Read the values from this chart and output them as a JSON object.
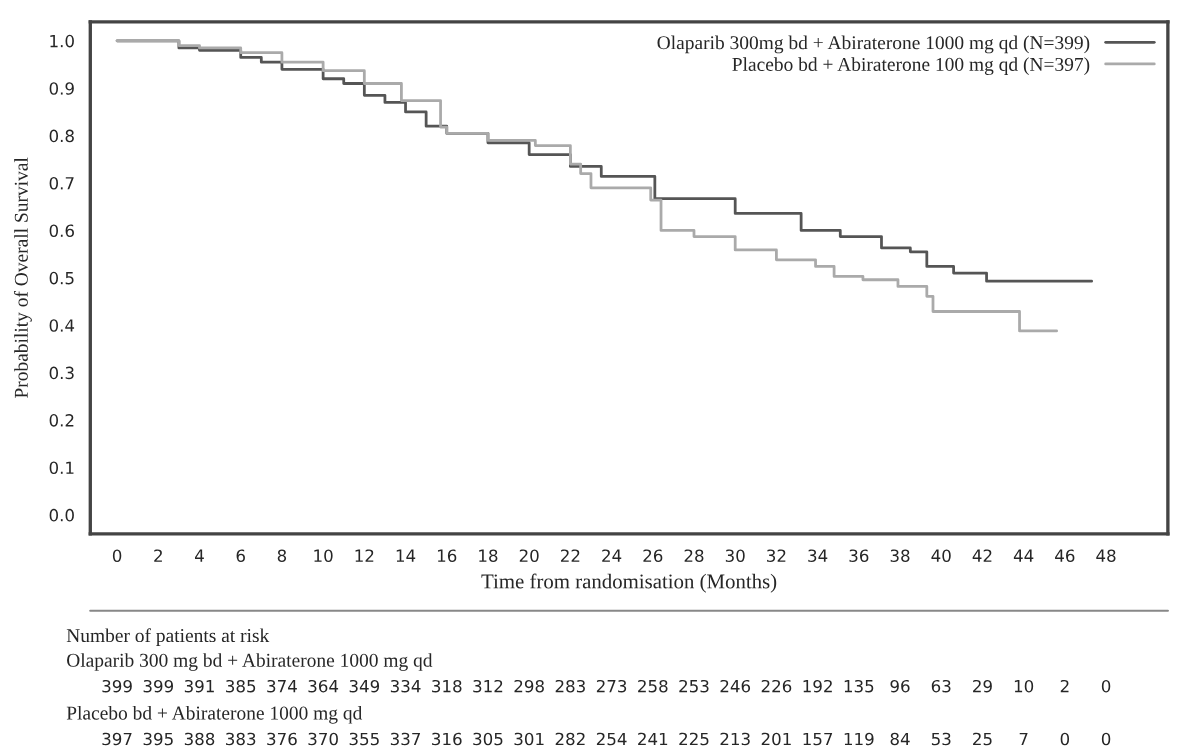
{
  "chart_data": {
    "type": "step",
    "xlabel": "Time from randomisation (Months)",
    "ylabel": "Probability of Overall Survival",
    "xlim": [
      -1.3,
      51
    ],
    "ylim": [
      -0.04,
      1.04
    ],
    "xticks": [
      0,
      2,
      4,
      6,
      8,
      10,
      12,
      14,
      16,
      18,
      20,
      22,
      24,
      26,
      28,
      30,
      32,
      34,
      36,
      38,
      40,
      42,
      44,
      46,
      48
    ],
    "yticks": [
      {
        "value": 0,
        "label": "0.0"
      },
      {
        "value": 0.1,
        "label": "0.1"
      },
      {
        "value": 0.2,
        "label": "0.2"
      },
      {
        "value": 0.3,
        "label": "0.3"
      },
      {
        "value": 0.4,
        "label": "0.4"
      },
      {
        "value": 0.5,
        "label": "0.5"
      },
      {
        "value": 0.6,
        "label": "0.6"
      },
      {
        "value": 0.7,
        "label": "0.7"
      },
      {
        "value": 0.8,
        "label": "0.8"
      },
      {
        "value": 0.9,
        "label": "0.9"
      },
      {
        "value": 1,
        "label": "1.0"
      }
    ],
    "legend": "top right",
    "grid": false,
    "marker": "none",
    "line_style": "solid",
    "series": [
      {
        "name": "Olaparib 300mg bd + Abiraterone 1000 mg qd (N=399)",
        "color": "#555555",
        "x": [
          0,
          2,
          3,
          4,
          6,
          7,
          8,
          10,
          11,
          12,
          13,
          14,
          15,
          16,
          18,
          20,
          22,
          23.5,
          26.1,
          27.5,
          30,
          33.2,
          35.1,
          37.1,
          38.5,
          39.3,
          40.6,
          42.2,
          47.3
        ],
        "values": [
          1.0,
          1.0,
          0.985,
          0.98,
          0.965,
          0.955,
          0.94,
          0.92,
          0.91,
          0.885,
          0.87,
          0.85,
          0.82,
          0.805,
          0.785,
          0.76,
          0.735,
          0.714,
          0.667,
          0.667,
          0.636,
          0.6,
          0.587,
          0.563,
          0.555,
          0.524,
          0.51,
          0.493,
          0.493
        ]
      },
      {
        "name": "Placebo bd + Abiraterone 100 mg qd (N=397)",
        "color": "#aaaaaa",
        "x": [
          0,
          2,
          3,
          4,
          6,
          8,
          10,
          12,
          13.8,
          15.7,
          16,
          18,
          20.3,
          22,
          22.5,
          23,
          23.5,
          25.9,
          26.4,
          28,
          30,
          32,
          33.9,
          34.8,
          36.2,
          37.9,
          39.3,
          39.6,
          43.8,
          45.6
        ],
        "values": [
          1.0,
          1.0,
          0.99,
          0.985,
          0.975,
          0.955,
          0.937,
          0.91,
          0.874,
          0.818,
          0.805,
          0.79,
          0.779,
          0.74,
          0.72,
          0.69,
          0.69,
          0.664,
          0.6,
          0.587,
          0.559,
          0.538,
          0.524,
          0.503,
          0.496,
          0.482,
          0.461,
          0.429,
          0.388,
          0.388
        ]
      }
    ],
    "annotations": [
      "Number of patients at risk",
      "Olaparib 300 mg bd + Abiraterone 1000 mg qd",
      "399",
      "399",
      "391",
      "385",
      "374",
      "364",
      "349",
      "334",
      "318",
      "312",
      "298",
      "283",
      "273",
      "258",
      "253",
      "246",
      "226",
      "192",
      "135",
      "96",
      "63",
      "29",
      "10",
      "2",
      "0",
      "Placebo bd + Abiraterone 1000 mg qd",
      "397",
      "395",
      "388",
      "383",
      "376",
      "370",
      "355",
      "337",
      "316",
      "305",
      "301",
      "282",
      "254",
      "241",
      "225",
      "213",
      "201",
      "157",
      "119",
      "84",
      "53",
      "25",
      "7",
      "0",
      "0"
    ]
  }
}
